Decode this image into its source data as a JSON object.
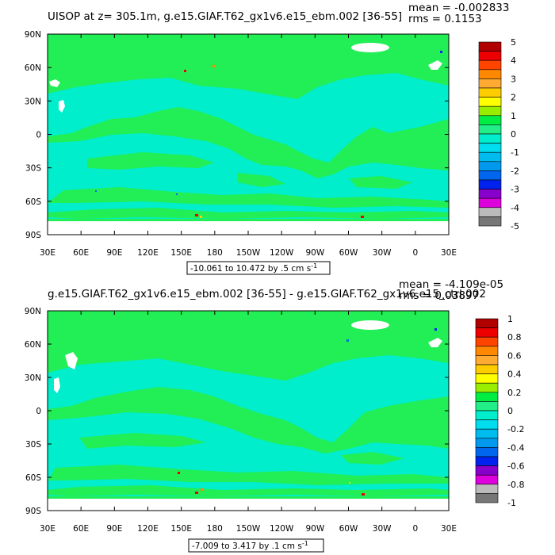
{
  "chart_data": [
    {
      "type": "heatmap",
      "title": "UISOP at z= 305.1m, g.e15.GIAF.T62_gx1v6.e15_ebm.002 [36-55]",
      "mean_label": "mean = -0.002833",
      "rms_label": "rms = 0.1153",
      "range_label": "-10.061 to 10.472 by .5 cm s",
      "range_superscript": "-1",
      "x_ticks": [
        "30E",
        "60E",
        "90E",
        "120E",
        "150E",
        "180",
        "150W",
        "120W",
        "90W",
        "60W",
        "30W",
        "0",
        "30E"
      ],
      "y_ticks": [
        "90N",
        "60N",
        "30N",
        "0",
        "30S",
        "60S",
        "90S"
      ],
      "xlim": [
        30,
        390
      ],
      "ylim": [
        -90,
        90
      ],
      "colorbar": {
        "labels": [
          "5",
          "4",
          "3",
          "2",
          "1",
          "0",
          "-1",
          "-2",
          "-3",
          "-4",
          "-5"
        ],
        "colors": [
          "#b00000",
          "#ee0000",
          "#ff4400",
          "#ff8800",
          "#ffaa33",
          "#ffcc00",
          "#ffff00",
          "#99ee00",
          "#00ee44",
          "#22ee88",
          "#00eecc",
          "#00ddee",
          "#00bbee",
          "#0099ee",
          "#0066ee",
          "#0022ee",
          "#8800cc",
          "#dd00dd",
          "#bbbbbb",
          "#777777"
        ]
      }
    },
    {
      "type": "heatmap",
      "title": "g.e15.GIAF.T62_gx1v6.e15_ebm.002 [36-55] - g.e15.GIAF.T62_gx1v6.e15_ctrl.002",
      "mean_label": "mean = -4.109e-05",
      "rms_label": "rms = 0.03897",
      "range_label": "-7.009 to 3.417 by .1 cm s",
      "range_superscript": "-1",
      "x_ticks": [
        "30E",
        "60E",
        "90E",
        "120E",
        "150E",
        "180",
        "150W",
        "120W",
        "90W",
        "60W",
        "30W",
        "0",
        "30E"
      ],
      "y_ticks": [
        "90N",
        "60N",
        "30N",
        "0",
        "30S",
        "60S",
        "90S"
      ],
      "xlim": [
        30,
        390
      ],
      "ylim": [
        -90,
        90
      ],
      "colorbar": {
        "labels": [
          "1",
          "0.8",
          "0.6",
          "0.4",
          "0.2",
          "0",
          "-0.2",
          "-0.4",
          "-0.6",
          "-0.8",
          "-1"
        ],
        "colors": [
          "#b00000",
          "#ee0000",
          "#ff4400",
          "#ff8800",
          "#ffaa33",
          "#ffcc00",
          "#ffff00",
          "#99ee00",
          "#00ee44",
          "#22ee88",
          "#00eecc",
          "#00ddee",
          "#00bbee",
          "#0099ee",
          "#0066ee",
          "#0022ee",
          "#8800cc",
          "#dd00dd",
          "#bbbbbb",
          "#777777"
        ]
      }
    }
  ],
  "colors": {
    "zero_band": "#22ee55",
    "neg_small": "#00eecc",
    "land": "#ffffff"
  }
}
